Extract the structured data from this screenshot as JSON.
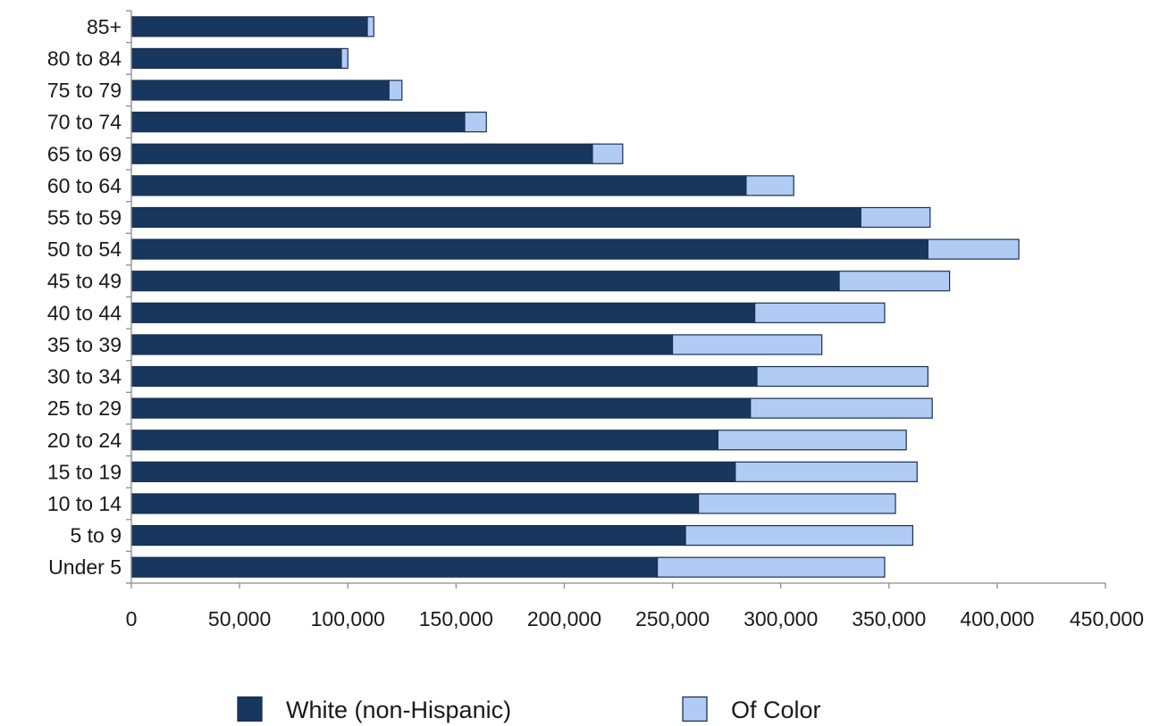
{
  "chart_data": {
    "type": "bar",
    "orientation": "horizontal",
    "stacked": true,
    "categories": [
      "Under 5",
      "5 to 9",
      "10 to 14",
      "15 to 19",
      "20 to 24",
      "25 to 29",
      "30 to 34",
      "35 to 39",
      "40 to 44",
      "45 to 49",
      "50 to 54",
      "55 to 59",
      "60 to 64",
      "65 to 69",
      "70 to 74",
      "75 to 79",
      "80 to 84",
      "85+"
    ],
    "series": [
      {
        "name": "White (non-Hispanic)",
        "color": "#17375e",
        "values": [
          243000,
          256000,
          262000,
          279000,
          271000,
          286000,
          289000,
          250000,
          288000,
          327000,
          368000,
          337000,
          284000,
          213000,
          154000,
          119000,
          97000,
          109000
        ]
      },
      {
        "name": "Of Color",
        "color": "#b0ccf5",
        "values": [
          105000,
          105000,
          91000,
          84000,
          87000,
          84000,
          79000,
          69000,
          60000,
          51000,
          42000,
          32000,
          22000,
          14000,
          10000,
          6000,
          3000,
          3000
        ]
      }
    ],
    "xlim": [
      0,
      450000
    ],
    "xticks": [
      0,
      50000,
      100000,
      150000,
      200000,
      250000,
      300000,
      350000,
      400000,
      450000
    ],
    "xtick_labels": [
      "0",
      "50,000",
      "100,000",
      "150,000",
      "200,000",
      "250,000",
      "300,000",
      "350,000",
      "400,000",
      "450,000"
    ],
    "grid": false,
    "legend_position": "bottom",
    "title": "",
    "xlabel": "",
    "ylabel": ""
  }
}
